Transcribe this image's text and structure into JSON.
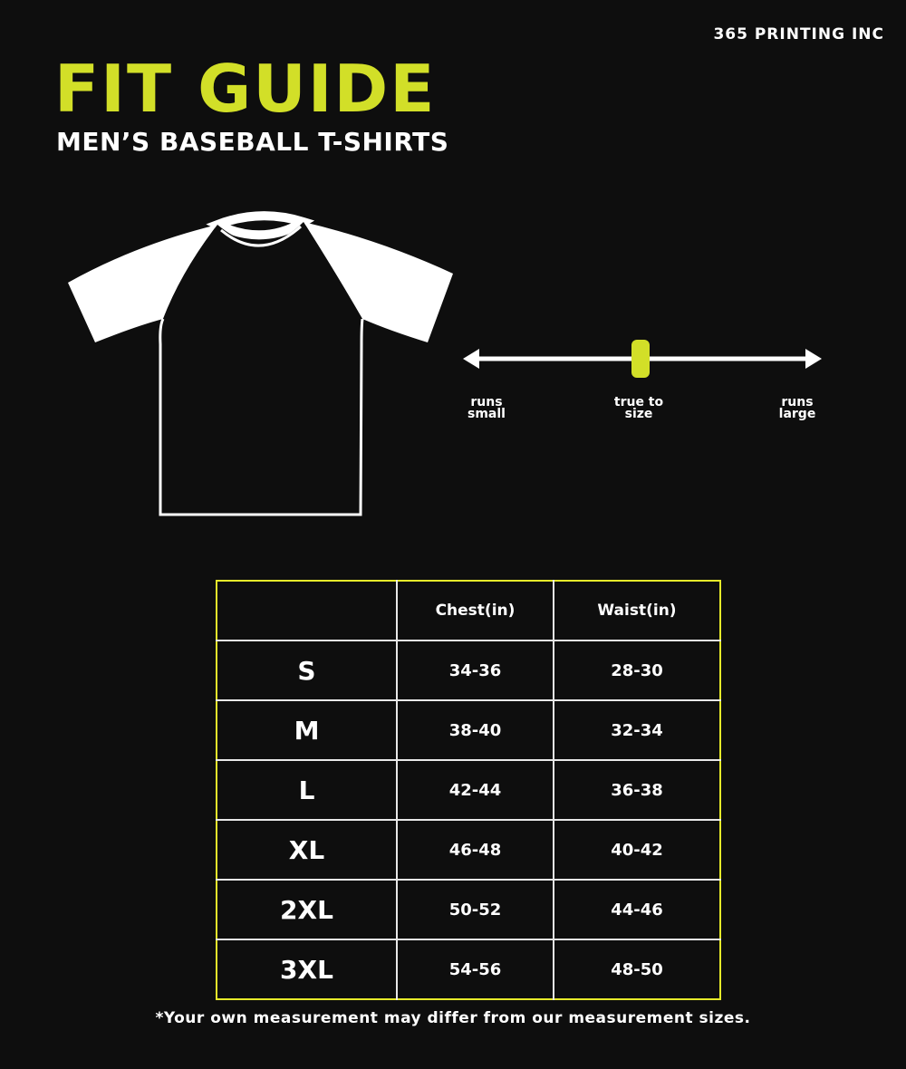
{
  "brand": "365 PRINTING INC",
  "title": "FIT GUIDE",
  "subtitle": "MEN’S BASEBALL T-SHIRTS",
  "colors": {
    "accent": "#d2df28",
    "background": "#0e0e0e",
    "table_border": "#e6ea2a"
  },
  "fit_scale": {
    "labels": [
      "runs small",
      "true to size",
      "runs large"
    ],
    "value": "true to size",
    "position_percent": 50
  },
  "table": {
    "headers": [
      "",
      "Chest(in)",
      "Waist(in)"
    ],
    "rows": [
      [
        "S",
        "34-36",
        "28-30"
      ],
      [
        "M",
        "38-40",
        "32-34"
      ],
      [
        "L",
        "42-44",
        "36-38"
      ],
      [
        "XL",
        "46-48",
        "40-42"
      ],
      [
        "2XL",
        "50-52",
        "44-46"
      ],
      [
        "3XL",
        "54-56",
        "48-50"
      ]
    ]
  },
  "note": "*Your own measurement may differ from our measurement sizes."
}
